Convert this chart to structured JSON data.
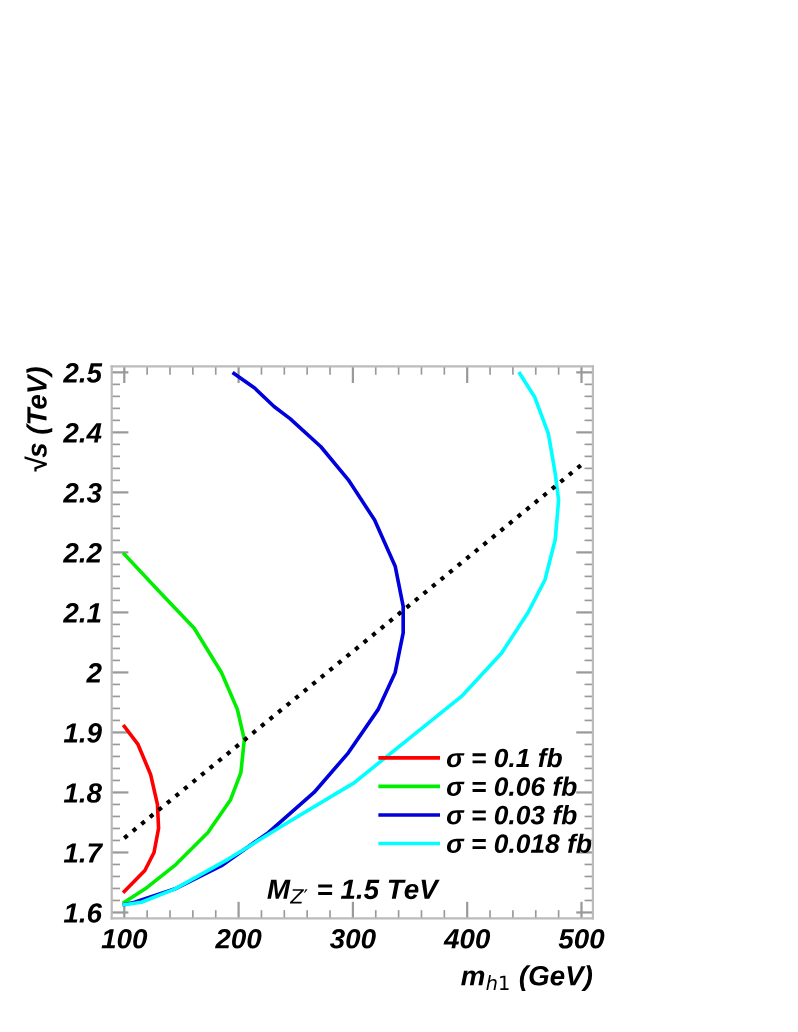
{
  "chart_data": {
    "type": "line",
    "xlabel": "m$_{h1}$ (GeV)",
    "ylabel": "√s (TeV)",
    "xlim": [
      89,
      510
    ],
    "ylim": [
      1.59,
      2.51
    ],
    "xticks": [
      100,
      200,
      300,
      400,
      500
    ],
    "yticks": [
      1.6,
      1.7,
      1.8,
      1.9,
      2,
      2.1,
      2.2,
      2.3,
      2.4,
      2.5
    ],
    "grid": false,
    "legend": "bottom right",
    "marker": "none",
    "annotations": [
      "M$_{Z′}$ = 1.5 TeV"
    ],
    "series": [
      {
        "name": "σ = 0.1 fb",
        "color": "#ff0000",
        "line_style": "solid",
        "x": [
          100,
          112,
          123,
          129,
          130,
          126,
          118,
          100
        ],
        "values": [
          1.91,
          1.88,
          1.83,
          1.78,
          1.74,
          1.7,
          1.67,
          1.635
        ]
      },
      {
        "name": "σ = 0.06 fb",
        "color": "#00ee00",
        "line_style": "solid",
        "x": [
          100,
          132,
          161,
          185,
          199,
          205,
          202,
          193,
          173,
          144,
          118,
          100
        ],
        "values": [
          2.197,
          2.132,
          2.074,
          2.0,
          1.938,
          1.888,
          1.833,
          1.788,
          1.733,
          1.678,
          1.639,
          1.617
        ]
      },
      {
        "name": "σ = 0.03 fb",
        "color": "#0000dd",
        "line_style": "solid",
        "x": [
          196,
          214,
          231,
          245,
          272,
          296,
          319,
          337,
          344,
          344,
          337,
          322,
          296,
          266,
          226,
          185,
          144,
          109,
          100
        ],
        "values": [
          2.498,
          2.474,
          2.443,
          2.423,
          2.376,
          2.321,
          2.254,
          2.177,
          2.11,
          2.066,
          2.0,
          1.938,
          1.866,
          1.8,
          1.733,
          1.678,
          1.639,
          1.617,
          1.613
        ]
      },
      {
        "name": "σ = 0.018 fb",
        "color": "#00ffff",
        "line_style": "solid",
        "x": [
          446,
          459,
          471,
          477,
          480,
          477,
          468,
          453,
          430,
          395,
          348,
          301,
          243,
          191,
          144,
          115,
          100
        ],
        "values": [
          2.498,
          2.459,
          2.398,
          2.332,
          2.287,
          2.221,
          2.154,
          2.099,
          2.032,
          1.96,
          1.888,
          1.816,
          1.75,
          1.689,
          1.639,
          1.617,
          1.613
        ]
      },
      {
        "color": "#000000",
        "line_style": "dotted",
        "x": [
          100,
          500
        ],
        "values": [
          1.724,
          2.346
        ]
      }
    ]
  }
}
